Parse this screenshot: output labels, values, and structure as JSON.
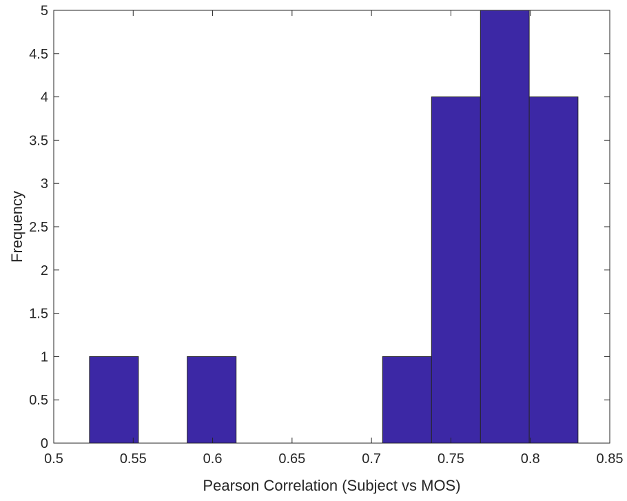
{
  "chart_data": {
    "type": "bar",
    "histogram": true,
    "title": "",
    "xlabel": "Pearson Correlation (Subject vs MOS)",
    "ylabel": "Frequency",
    "xlim": [
      0.5,
      0.85
    ],
    "ylim": [
      0,
      5
    ],
    "bin_edges": [
      0.5225,
      0.5533,
      0.584,
      0.6148,
      0.6455,
      0.6763,
      0.707,
      0.7378,
      0.7686,
      0.7993,
      0.83
    ],
    "values": [
      1,
      0,
      1,
      0,
      0,
      0,
      1,
      4,
      5,
      4
    ],
    "x_ticks": [
      0.5,
      0.55,
      0.6,
      0.65,
      0.7,
      0.75,
      0.8,
      0.85
    ],
    "x_tick_labels": [
      "0.5",
      "0.55",
      "0.6",
      "0.65",
      "0.7",
      "0.75",
      "0.8",
      "0.85"
    ],
    "y_ticks": [
      0,
      0.5,
      1,
      1.5,
      2,
      2.5,
      3,
      3.5,
      4,
      4.5,
      5
    ],
    "y_tick_labels": [
      "0",
      "0.5",
      "1",
      "1.5",
      "2",
      "2.5",
      "3",
      "3.5",
      "4",
      "4.5",
      "5"
    ],
    "grid": false,
    "bar_color": "#3c28a5",
    "edge_color": "#262626",
    "axis_color": "#262626"
  }
}
